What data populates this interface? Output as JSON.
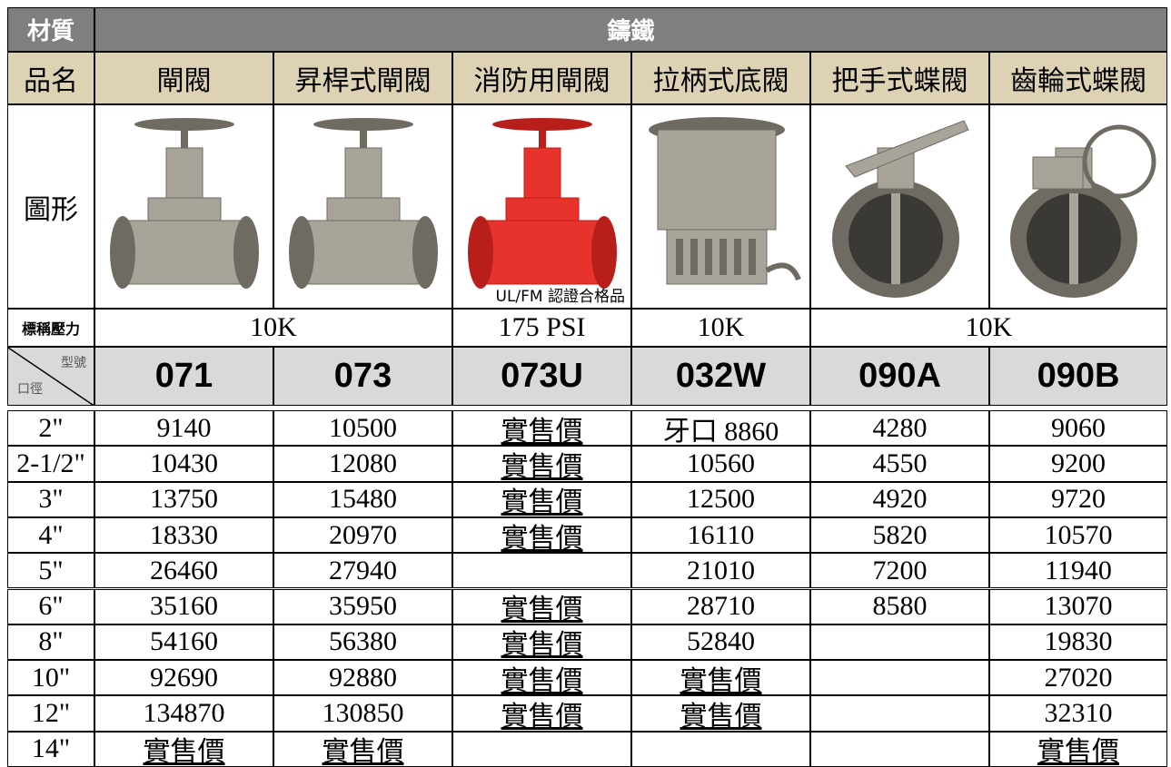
{
  "header": {
    "material_label": "材質",
    "material": "鑄鐵",
    "name_label": "品名",
    "names": [
      "閘閥",
      "昇桿式閘閥",
      "消防用閘閥",
      "拉柄式底閥",
      "把手式蝶閥",
      "齒輪式蝶閥"
    ],
    "figure_label": "圖形",
    "figure_note": "UL/FM 認證合格品",
    "pressure_label": "標稱壓力",
    "pressures": [
      "10K",
      "175 PSI",
      "10K",
      "10K"
    ],
    "model_label": "型號",
    "size_label": "口徑",
    "models": [
      "071",
      "073",
      "073U",
      "032W",
      "090A",
      "090B"
    ]
  },
  "table": {
    "rows": [
      [
        "2\"",
        9140,
        10500,
        "實售價",
        "牙口  8860",
        4280,
        9060
      ],
      [
        "2-1/2\"",
        10430,
        12080,
        "實售價",
        10560,
        4550,
        9200
      ],
      [
        "3\"",
        13750,
        15480,
        "實售價",
        12500,
        4920,
        9720
      ],
      [
        "4\"",
        18330,
        20970,
        "實售價",
        16110,
        5820,
        10570
      ],
      [
        "5\"",
        26460,
        27940,
        null,
        21010,
        7200,
        11940
      ],
      [
        "6\"",
        35160,
        35950,
        "實售價",
        28710,
        8580,
        13070
      ],
      [
        "8\"",
        54160,
        56380,
        "實售價",
        52840,
        null,
        19830
      ],
      [
        "10\"",
        92690,
        92880,
        "實售價",
        "實售價",
        null,
        27020
      ],
      [
        "12\"",
        134870,
        130850,
        "實售價",
        "實售價",
        null,
        32310
      ],
      [
        "14\"",
        "實售價",
        "實售價",
        null,
        null,
        null,
        "實售價"
      ]
    ]
  }
}
